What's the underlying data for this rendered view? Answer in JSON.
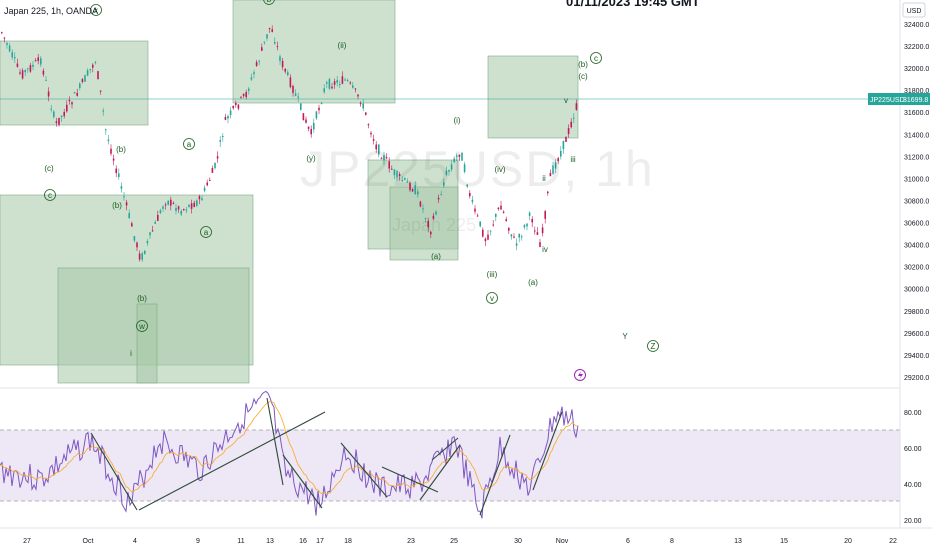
{
  "header": {
    "title": "Japan 225, 1h, OANDA",
    "timestamp": "01/11/2023 19:45 GMT",
    "watermark_symbol": "JP225USD, 1h",
    "watermark_name": "Japan 225"
  },
  "price_axis": {
    "currency": "USD",
    "ticks": [
      "32400.0",
      "32200.0",
      "32000.0",
      "31800.0",
      "31600.0",
      "31400.0",
      "31200.0",
      "31000.0",
      "30800.0",
      "30600.0",
      "30400.0",
      "30200.0",
      "30000.0",
      "29800.0",
      "29600.0",
      "29400.0",
      "29200.0"
    ],
    "symbol_tag": "JP225USD",
    "last_price": "31699.8"
  },
  "rsi_axis": {
    "ticks": [
      "80.00",
      "60.00",
      "40.00",
      "20.00"
    ]
  },
  "time_axis": {
    "ticks": [
      "27",
      "Oct",
      "4",
      "9",
      "11",
      "13",
      "16",
      "17",
      "18",
      "23",
      "25",
      "30",
      "Nov",
      "6",
      "8",
      "13",
      "15",
      "20",
      "22"
    ]
  },
  "wave_labels": [
    "(x)",
    "(c)",
    "(ii)",
    "(b)",
    "(c)",
    "(a)",
    "(b)",
    "(a)",
    "(b)",
    "(c)",
    "(w)",
    "(y)",
    "(i)",
    "(iv)",
    "(a)",
    "(iii)",
    "(v)",
    "(a)",
    "(b)",
    "(c)",
    "(b)",
    "v",
    "iii",
    "iv",
    "ii",
    "i",
    "Y",
    "Z",
    "(c)"
  ],
  "colors": {
    "candle_up": "#26a69a",
    "candle_down": "#c2185b",
    "zone_fill": "#a5c8a8",
    "zone_stroke": "#7fa985",
    "wave_label": "#1b5e20",
    "rsi_line": "#7e57c2",
    "rsi_band": "#ede7f6",
    "rsi_ma": "#f9a825",
    "trendline": "#2e4a3a",
    "price_tag": "#26a69a",
    "flash_icon": "#9c27b0"
  },
  "icons": {
    "alert": "lightning-icon"
  }
}
